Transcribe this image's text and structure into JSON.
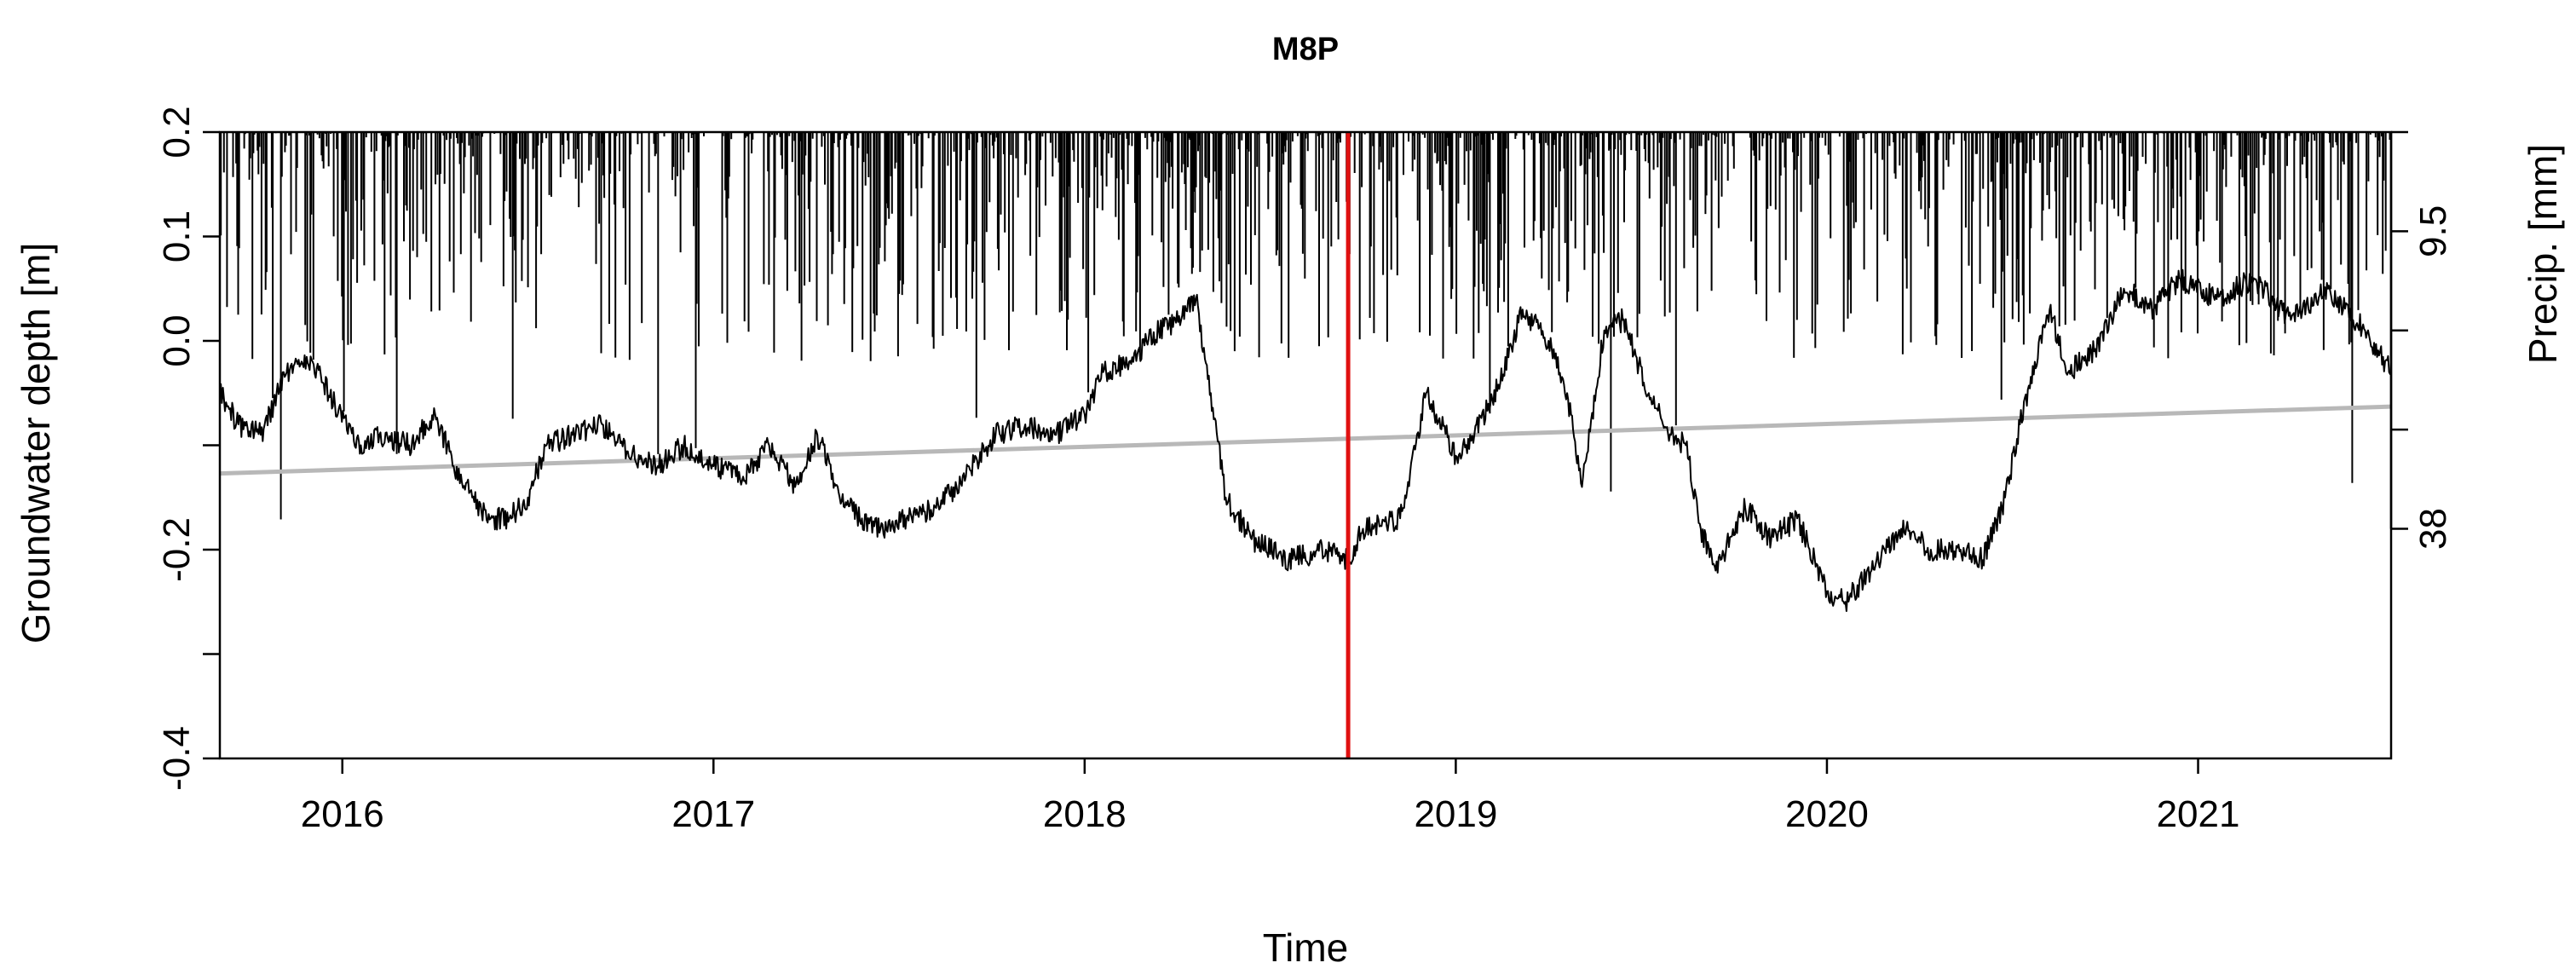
{
  "chart_data": {
    "type": "line",
    "title": "M8P",
    "xlabel": "Time",
    "ylabel": "Groundwater depth [m]",
    "ylabel_right": "Precip. [mm]",
    "xlim": [
      2015.67,
      2021.52
    ],
    "ylim": [
      -0.4,
      0.2
    ],
    "x_ticks": [
      2016,
      2017,
      2018,
      2019,
      2020,
      2021
    ],
    "x_tick_labels": [
      "2016",
      "2017",
      "2018",
      "2019",
      "2020",
      "2021"
    ],
    "y_ticks": [
      -0.4,
      -0.3,
      -0.2,
      -0.1,
      0.0,
      0.1,
      0.2
    ],
    "y_tick_labels": [
      "-0.4",
      "",
      "-0.2",
      "",
      "0.0",
      "0.1",
      "0.2"
    ],
    "right_axis": {
      "ticks": [
        0,
        9.5,
        19,
        28.5,
        38
      ],
      "tick_labels": [
        "",
        "9.5",
        "",
        "",
        "38"
      ],
      "range_mm": [
        0,
        60
      ],
      "inverted": true
    },
    "grid": false,
    "vertical_marker": {
      "x": 2018.71,
      "color": "#e01010"
    },
    "series": [
      {
        "kind": "groundwater",
        "color": "#000000",
        "x": [
          2015.67,
          2015.72,
          2015.78,
          2015.85,
          2015.92,
          2015.98,
          2016.05,
          2016.1,
          2016.18,
          2016.25,
          2016.3,
          2016.35,
          2016.4,
          2016.45,
          2016.5,
          2016.55,
          2016.62,
          2016.7,
          2016.78,
          2016.85,
          2016.92,
          2017.0,
          2017.08,
          2017.15,
          2017.22,
          2017.28,
          2017.34,
          2017.4,
          2017.45,
          2017.52,
          2017.6,
          2017.68,
          2017.76,
          2017.84,
          2017.92,
          2018.0,
          2018.05,
          2018.12,
          2018.2,
          2018.26,
          2018.3,
          2018.34,
          2018.38,
          2018.45,
          2018.55,
          2018.65,
          2018.71,
          2018.75,
          2018.85,
          2018.92,
          2019.0,
          2019.05,
          2019.12,
          2019.18,
          2019.25,
          2019.3,
          2019.34,
          2019.4,
          2019.45,
          2019.52,
          2019.58,
          2019.62,
          2019.66,
          2019.7,
          2019.78,
          2019.85,
          2019.92,
          2020.0,
          2020.05,
          2020.12,
          2020.2,
          2020.28,
          2020.36,
          2020.42,
          2020.48,
          2020.52,
          2020.56,
          2020.6,
          2020.65,
          2020.72,
          2020.8,
          2020.88,
          2020.95,
          2021.05,
          2021.15,
          2021.25,
          2021.35,
          2021.45,
          2021.52
        ],
        "y": [
          -0.05,
          -0.08,
          -0.09,
          -0.03,
          -0.02,
          -0.06,
          -0.1,
          -0.09,
          -0.1,
          -0.07,
          -0.12,
          -0.15,
          -0.17,
          -0.17,
          -0.15,
          -0.1,
          -0.09,
          -0.08,
          -0.11,
          -0.12,
          -0.1,
          -0.12,
          -0.13,
          -0.1,
          -0.14,
          -0.09,
          -0.15,
          -0.17,
          -0.18,
          -0.17,
          -0.16,
          -0.13,
          -0.09,
          -0.08,
          -0.09,
          -0.07,
          -0.03,
          -0.02,
          0.01,
          0.02,
          0.04,
          -0.05,
          -0.15,
          -0.19,
          -0.21,
          -0.2,
          -0.21,
          -0.18,
          -0.17,
          -0.05,
          -0.11,
          -0.09,
          -0.04,
          0.03,
          0.0,
          -0.05,
          -0.14,
          0.01,
          0.02,
          -0.05,
          -0.09,
          -0.1,
          -0.18,
          -0.22,
          -0.16,
          -0.19,
          -0.17,
          -0.24,
          -0.25,
          -0.22,
          -0.18,
          -0.2,
          -0.2,
          -0.21,
          -0.15,
          -0.08,
          -0.02,
          0.03,
          -0.03,
          -0.01,
          0.05,
          0.03,
          0.06,
          0.04,
          0.06,
          0.02,
          0.05,
          0.01,
          -0.03
        ]
      },
      {
        "kind": "trend",
        "color": "#b8b8b8",
        "x": [
          2015.67,
          2021.52
        ],
        "y": [
          -0.127,
          -0.063
        ]
      }
    ]
  }
}
